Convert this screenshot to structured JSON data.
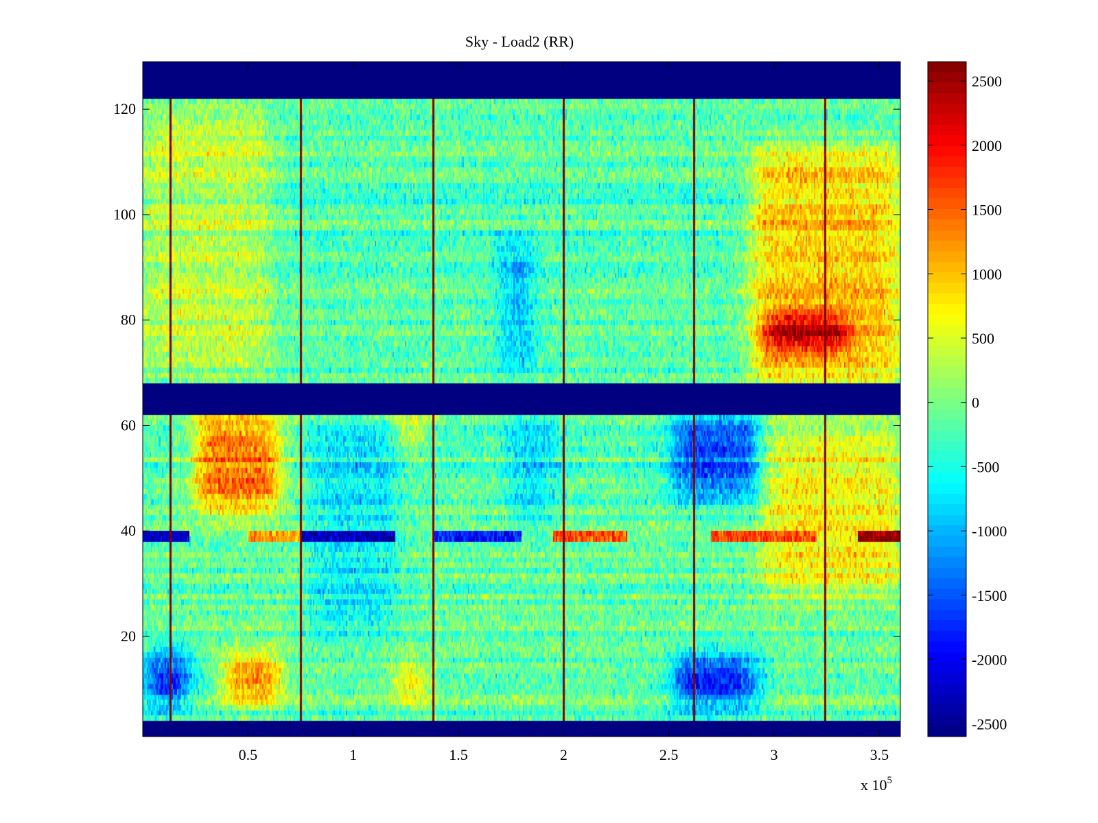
{
  "chart_data": {
    "type": "heatmap",
    "title": "Sky - Load2 (RR)",
    "xlabel": "",
    "ylabel": "",
    "x_multiplier_label": "x 10",
    "x_multiplier_exponent": "5",
    "xlim": [
      0,
      3.6
    ],
    "ylim": [
      1,
      129
    ],
    "x_ticks": [
      0.5,
      1,
      1.5,
      2,
      2.5,
      3,
      3.5
    ],
    "x_tick_labels": [
      "0.5",
      "1",
      "1.5",
      "2",
      "2.5",
      "3",
      "3.5"
    ],
    "y_ticks": [
      20,
      40,
      60,
      80,
      100,
      120
    ],
    "y_tick_labels": [
      "20",
      "40",
      "60",
      "80",
      "100",
      "120"
    ],
    "colorbar": {
      "colormap": "jet",
      "clim": [
        -2600,
        2650
      ],
      "ticks": [
        2500,
        2000,
        1500,
        1000,
        500,
        0,
        -500,
        -1000,
        -1500,
        -2000,
        -2500
      ],
      "tick_labels": [
        "2500",
        "2000",
        "1500",
        "1000",
        "500",
        "0",
        "-500",
        "-1000",
        "-1500",
        "-2000",
        "-2500"
      ]
    },
    "masked_row_bands": [
      {
        "y_from": 1,
        "y_to": 4,
        "value": -2600
      },
      {
        "y_from": 62,
        "y_to": 68,
        "value": -2600
      },
      {
        "y_from": 122,
        "y_to": 129,
        "value": -2600
      }
    ],
    "vertical_spike_lines_x": [
      0.13,
      0.75,
      1.38,
      2.0,
      2.62,
      3.24
    ],
    "spike_value": 2500,
    "background_value": -150,
    "warm_regions": [
      {
        "x": [
          0.25,
          0.65
        ],
        "y": [
          44,
          62
        ],
        "value": 1500
      },
      {
        "x": [
          0.4,
          0.65
        ],
        "y": [
          8,
          16
        ],
        "value": 1600
      },
      {
        "x": [
          1.2,
          1.35
        ],
        "y": [
          8,
          14
        ],
        "value": 1100
      },
      {
        "x": [
          1.2,
          1.35
        ],
        "y": [
          57,
          62
        ],
        "value": 900
      },
      {
        "x": [
          2.9,
          3.6
        ],
        "y": [
          68,
          112
        ],
        "value": 1000
      },
      {
        "x": [
          2.95,
          3.35
        ],
        "y": [
          75,
          80
        ],
        "value": 1800
      },
      {
        "x": [
          2.95,
          3.6
        ],
        "y": [
          28,
          60
        ],
        "value": 700
      },
      {
        "x": [
          0.0,
          0.6
        ],
        "y": [
          70,
          120
        ],
        "value": 400
      }
    ],
    "cool_regions": [
      {
        "x": [
          0.02,
          0.22
        ],
        "y": [
          7,
          17
        ],
        "value": -1900
      },
      {
        "x": [
          2.52,
          2.92
        ],
        "y": [
          7,
          16
        ],
        "value": -1900
      },
      {
        "x": [
          2.52,
          2.92
        ],
        "y": [
          46,
          62
        ],
        "value": -1500
      },
      {
        "x": [
          1.7,
          1.85
        ],
        "y": [
          70,
          95
        ],
        "value": -1000
      },
      {
        "x": [
          1.75,
          1.95
        ],
        "y": [
          42,
          62
        ],
        "value": -800
      },
      {
        "x": [
          0.8,
          1.2
        ],
        "y": [
          20,
          60
        ],
        "value": -700
      }
    ],
    "horizontal_row_y39": {
      "y": 39,
      "segments": [
        {
          "x": [
            0.0,
            0.22
          ],
          "value": -2300
        },
        {
          "x": [
            0.5,
            0.75
          ],
          "value": 1200
        },
        {
          "x": [
            0.75,
            1.2
          ],
          "value": -2300
        },
        {
          "x": [
            1.38,
            1.8
          ],
          "value": -1800
        },
        {
          "x": [
            1.95,
            2.3
          ],
          "value": 1600
        },
        {
          "x": [
            2.7,
            3.2
          ],
          "value": 1600
        },
        {
          "x": [
            3.4,
            3.6
          ],
          "value": 2600
        }
      ]
    }
  }
}
